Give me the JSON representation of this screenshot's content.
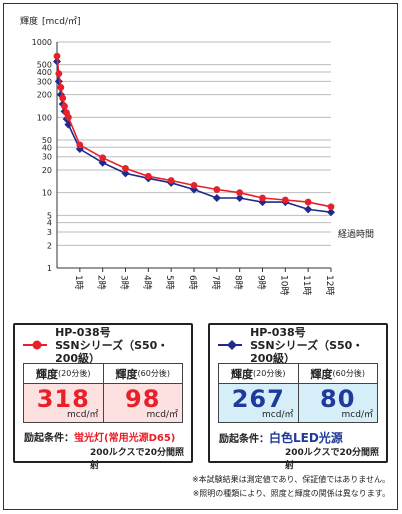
{
  "chart_data": {
    "type": "line",
    "ylabel_text": "輝度",
    "yunit": "[mcd/㎡]",
    "xlabel": "経過時間",
    "y_scale": "log",
    "ylim": [
      1,
      1000
    ],
    "y_ticks": [
      "1",
      "2",
      "3",
      "4",
      "5",
      "10",
      "20",
      "30",
      "40",
      "50",
      "100",
      "200",
      "300",
      "400",
      "500",
      "1000"
    ],
    "x_tick_labels": [
      "1時",
      "2時",
      "3時",
      "4時",
      "5時",
      "6時",
      "7時",
      "8時",
      "9時",
      "10時",
      "11時",
      "12時"
    ],
    "series": [
      {
        "color": "#e8202a",
        "marker": "circle",
        "points": [
          [
            0.0,
            650
          ],
          [
            0.08,
            380
          ],
          [
            0.17,
            250
          ],
          [
            0.25,
            180
          ],
          [
            0.33,
            140
          ],
          [
            0.42,
            115
          ],
          [
            0.5,
            100
          ],
          [
            1.0,
            43
          ],
          [
            2.0,
            29
          ],
          [
            3.0,
            21
          ],
          [
            4.0,
            16.5
          ],
          [
            5.0,
            14.5
          ],
          [
            6.0,
            12.5
          ],
          [
            7.0,
            11.0
          ],
          [
            8.0,
            10.0
          ],
          [
            9.0,
            8.5
          ],
          [
            10.0,
            8.0
          ],
          [
            11.0,
            7.5
          ],
          [
            12.0,
            6.5
          ]
        ]
      },
      {
        "color": "#1f2a8a",
        "marker": "diamond",
        "points": [
          [
            0.0,
            550
          ],
          [
            0.08,
            300
          ],
          [
            0.17,
            200
          ],
          [
            0.25,
            150
          ],
          [
            0.33,
            120
          ],
          [
            0.42,
            95
          ],
          [
            0.5,
            80
          ],
          [
            1.0,
            38
          ],
          [
            2.0,
            25
          ],
          [
            3.0,
            18
          ],
          [
            4.0,
            15.5
          ],
          [
            5.0,
            13.5
          ],
          [
            6.0,
            11.0
          ],
          [
            7.0,
            8.5
          ],
          [
            8.0,
            8.5
          ],
          [
            9.0,
            7.5
          ],
          [
            10.0,
            7.5
          ],
          [
            11.0,
            6.0
          ],
          [
            12.0,
            5.5
          ]
        ]
      }
    ]
  },
  "cards": [
    {
      "model": "HP-038号",
      "series": "SSNシリーズ（S50・200級）",
      "label_20": "輝度",
      "sub_20": "(20分後)",
      "label_60": "輝度",
      "sub_60": "(60分後)",
      "value_20": "318",
      "value_60": "98",
      "unit": "mcd/㎡",
      "cond_label": "励起条件：",
      "cond_source": "蛍光灯(常用光源D65)",
      "cond_detail": "200ルクスで20分間照射",
      "accent": "#e8202a"
    },
    {
      "model": "HP-038号",
      "series": "SSNシリーズ（S50・200級）",
      "label_20": "輝度",
      "sub_20": "(20分後)",
      "label_60": "輝度",
      "sub_60": "(60分後)",
      "value_20": "267",
      "value_60": "80",
      "unit": "mcd/㎡",
      "cond_label": "励起条件：",
      "cond_source": "白色LED光源",
      "cond_detail": "200ルクスで20分間照射",
      "accent": "#1f2a8a"
    }
  ],
  "notes": [
    "※本試験結果は測定値であり、保証値ではありません。",
    "※照明の種類により、照度と輝度の関係は異なります。"
  ]
}
